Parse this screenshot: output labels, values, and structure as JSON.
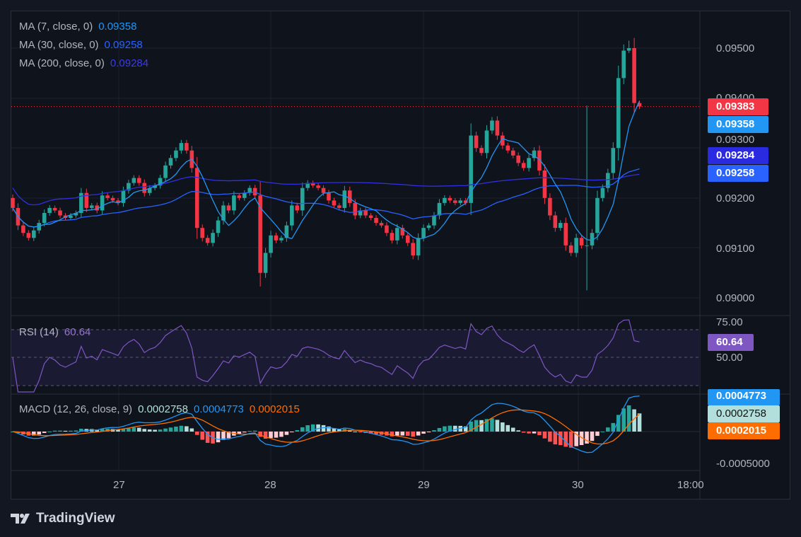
{
  "legend": {
    "ma7": {
      "label": "MA (7, close, 0)",
      "value": "0.09358",
      "color": "#2196f3"
    },
    "ma30": {
      "label": "MA (30, close, 0)",
      "value": "0.09258",
      "color": "#2962ff"
    },
    "ma200": {
      "label": "MA (200, close, 0)",
      "value": "0.09284",
      "color": "#3030e0"
    },
    "rsi": {
      "label": "RSI (14)",
      "value": "60.64",
      "color": "#7e57c2"
    },
    "macd": {
      "label": "MACD (12, 26, close, 9)",
      "hist": "0.0002758",
      "macd": "0.0004773",
      "signal": "0.0002015"
    }
  },
  "price_axis": [
    "0.09500",
    "0.09400",
    "0.09300",
    "0.09200",
    "0.09100",
    "0.09000"
  ],
  "price_tags": {
    "last": "0.09383",
    "ma7": "0.09358",
    "ma200": "0.09284",
    "ma30": "0.09258"
  },
  "rsi_axis": [
    "75.00",
    "50.00"
  ],
  "rsi_tag": "60.64",
  "macd_tags": {
    "macd": "0.0004773",
    "hist": "0.0002758",
    "signal": "0.0002015"
  },
  "macd_axis": "-0.0005000",
  "time_axis": [
    "27",
    "28",
    "29",
    "30",
    "18:00"
  ],
  "brand": "TradingView",
  "colors": {
    "up": "#26a69a",
    "down": "#f23645"
  },
  "chart_data": {
    "type": "candlestick",
    "ylim": [
      0.0898,
      0.0952
    ],
    "closes": [
      0.0918,
      0.09145,
      0.0913,
      0.0912,
      0.09135,
      0.0915,
      0.0917,
      0.0918,
      0.09175,
      0.09165,
      0.0916,
      0.09165,
      0.0917,
      0.0921,
      0.0918,
      0.09185,
      0.09175,
      0.09205,
      0.092,
      0.09195,
      0.0919,
      0.09215,
      0.0923,
      0.0924,
      0.0923,
      0.0921,
      0.0922,
      0.09225,
      0.0924,
      0.09265,
      0.0928,
      0.09295,
      0.0931,
      0.09295,
      0.0926,
      0.0914,
      0.0912,
      0.0911,
      0.0913,
      0.09155,
      0.09185,
      0.09175,
      0.09205,
      0.092,
      0.0921,
      0.0922,
      0.09205,
      0.0905,
      0.0909,
      0.09125,
      0.09115,
      0.0912,
      0.09145,
      0.09185,
      0.09175,
      0.0922,
      0.0923,
      0.09225,
      0.0922,
      0.0921,
      0.09195,
      0.09185,
      0.0918,
      0.09215,
      0.0919,
      0.09165,
      0.09175,
      0.09165,
      0.0916,
      0.0915,
      0.09145,
      0.0913,
      0.09115,
      0.0914,
      0.09125,
      0.0911,
      0.09085,
      0.0912,
      0.0914,
      0.09145,
      0.09165,
      0.0919,
      0.092,
      0.09195,
      0.0919,
      0.09195,
      0.0919,
      0.09325,
      0.093,
      0.0929,
      0.09335,
      0.09355,
      0.09325,
      0.09305,
      0.09295,
      0.09285,
      0.0927,
      0.0926,
      0.0928,
      0.09295,
      0.09255,
      0.092,
      0.09165,
      0.0914,
      0.0915,
      0.09105,
      0.0909,
      0.0912,
      0.09105,
      0.09105,
      0.0913,
      0.092,
      0.0922,
      0.0925,
      0.093,
      0.0944,
      0.09495,
      0.095,
      0.0939,
      0.09383
    ]
  }
}
